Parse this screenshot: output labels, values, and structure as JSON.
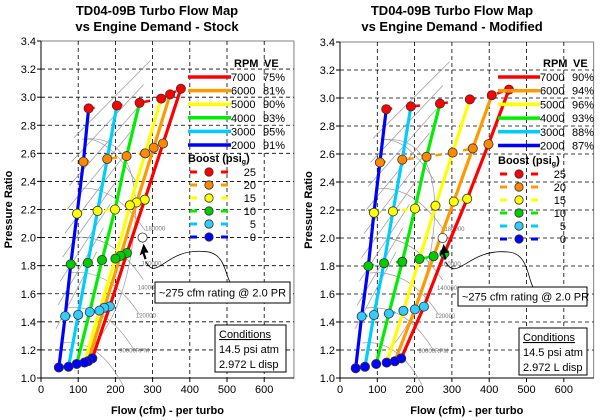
{
  "chart_data": [
    {
      "type": "line",
      "title": [
        "TD04-09B Turbo Flow Map",
        "vs Engine Demand - Stock"
      ],
      "xlabel": "Flow (cfm) - per turbo",
      "ylabel": "Pressure Ratio",
      "xlim": [
        0,
        680
      ],
      "ylim": [
        1.0,
        3.4
      ],
      "xticks": [
        0,
        100,
        200,
        300,
        400,
        500,
        600
      ],
      "yticks": [
        "1.0",
        "1.2",
        "1.4",
        "1.6",
        "1.8",
        "2.0",
        "2.2",
        "2.4",
        "2.6",
        "2.8",
        "3.0",
        "3.2",
        "3.4"
      ],
      "grid": true,
      "legend_placement": "top-right",
      "legend_rpm_header": [
        "RPM",
        "VE"
      ],
      "legend_boost_header": "Boost (psi",
      "legend_boost_sub": "g",
      "legend_boost_close": ")",
      "rpm_series": [
        {
          "rpm": "7000",
          "ve": "75%",
          "color": "#ff0000",
          "points": [
            [
              138,
              1.14
            ],
            [
              185,
              1.51
            ],
            [
              231,
              1.89
            ],
            [
              279,
              2.27
            ],
            [
              328,
              2.67
            ],
            [
              376,
              3.06
            ]
          ]
        },
        {
          "rpm": "6000",
          "ve": "81%",
          "color": "#ff9900",
          "points": [
            [
              127,
              1.12
            ],
            [
              170,
              1.5
            ],
            [
              214,
              1.87
            ],
            [
              257,
              2.25
            ],
            [
              303,
              2.64
            ],
            [
              347,
              3.02
            ]
          ]
        },
        {
          "rpm": "5000",
          "ve": "90%",
          "color": "#ffff00",
          "points": [
            [
              117,
              1.11
            ],
            [
              157,
              1.48
            ],
            [
              200,
              1.85
            ],
            [
              239,
              2.23
            ],
            [
              280,
              2.6
            ],
            [
              323,
              2.99
            ]
          ]
        },
        {
          "rpm": "4000",
          "ve": "93%",
          "color": "#00ee00",
          "points": [
            [
              96,
              1.1
            ],
            [
              131,
              1.47
            ],
            [
              164,
              1.84
            ],
            [
              199,
              2.2
            ],
            [
              230,
              2.58
            ],
            [
              265,
              2.96
            ]
          ]
        },
        {
          "rpm": "3000",
          "ve": "95%",
          "color": "#00ccff",
          "points": [
            [
              74,
              1.08
            ],
            [
              100,
              1.45
            ],
            [
              126,
              1.82
            ],
            [
              152,
              2.19
            ],
            [
              178,
              2.56
            ],
            [
              204,
              2.94
            ]
          ]
        },
        {
          "rpm": "2000",
          "ve": "91%",
          "color": "#0000ff",
          "points": [
            [
              48,
              1.075
            ],
            [
              65,
              1.44
            ],
            [
              80,
              1.81
            ],
            [
              97,
              2.17
            ],
            [
              114,
              2.54
            ],
            [
              128,
              2.92
            ]
          ]
        }
      ],
      "boost_levels": [
        {
          "psi": "25",
          "line_color": "#ff0000",
          "dot_color": "#ff0000"
        },
        {
          "psi": "20",
          "line_color": "#ff9900",
          "dot_color": "#ff8800"
        },
        {
          "psi": "15",
          "line_color": "#ffff00",
          "dot_color": "#ffff00"
        },
        {
          "psi": "10",
          "line_color": "#00ee00",
          "dot_color": "#00cc00"
        },
        {
          "psi": "5",
          "line_color": "#00ccff",
          "dot_color": "#33ccff"
        },
        {
          "psi": "0",
          "line_color": "#0000ff",
          "dot_color": "#0000ff"
        }
      ],
      "rating_point": [
        273,
        2.0
      ],
      "annotation": "~275 cfm rating @ 2.0 PR",
      "map_speed_labels": [
        "180000",
        "160000",
        "140000",
        "120000",
        "90000RPM"
      ],
      "conditions": {
        "title": "Conditions",
        "lines": [
          "14.5 psi atm",
          "2.972 L disp"
        ]
      }
    },
    {
      "type": "line",
      "title": [
        "TD04-09B Turbo Flow Map",
        "vs Engine Demand - Modified"
      ],
      "xlabel": "Flow (cfm) - per turbo",
      "ylabel": "Pressure Ratio",
      "xlim": [
        0,
        680
      ],
      "ylim": [
        1.0,
        3.4
      ],
      "xticks": [
        0,
        100,
        200,
        300,
        400,
        500,
        600
      ],
      "yticks": [
        "1.0",
        "1.2",
        "1.4",
        "1.6",
        "1.8",
        "2.0",
        "2.2",
        "2.4",
        "2.6",
        "2.8",
        "3.0",
        "3.2",
        "3.4"
      ],
      "grid": true,
      "legend_placement": "top-right",
      "legend_rpm_header": [
        "RPM",
        "VE"
      ],
      "legend_boost_header": "Boost (psi",
      "legend_boost_sub": "g",
      "legend_boost_close": ")",
      "rpm_series": [
        {
          "rpm": "7000",
          "ve": "90%",
          "color": "#ff0000",
          "points": [
            [
              164,
              1.14
            ],
            [
              225,
              1.51
            ],
            [
              280,
              1.89
            ],
            [
              341,
              2.28
            ],
            [
              398,
              2.67
            ],
            [
              453,
              3.06
            ]
          ]
        },
        {
          "rpm": "6000",
          "ve": "94%",
          "color": "#ff9900",
          "points": [
            [
              147,
              1.12
            ],
            [
              201,
              1.49
            ],
            [
              251,
              1.87
            ],
            [
              305,
              2.26
            ],
            [
              356,
              2.64
            ],
            [
              407,
              3.02
            ]
          ]
        },
        {
          "rpm": "5000",
          "ve": "96%",
          "color": "#ffff00",
          "points": [
            [
              125,
              1.11
            ],
            [
              170,
              1.48
            ],
            [
              213,
              1.85
            ],
            [
              256,
              2.23
            ],
            [
              302,
              2.61
            ],
            [
              348,
              2.99
            ]
          ]
        },
        {
          "rpm": "4000",
          "ve": "93%",
          "color": "#00ee00",
          "points": [
            [
              97,
              1.1
            ],
            [
              131,
              1.46
            ],
            [
              167,
              1.83
            ],
            [
              201,
              2.21
            ],
            [
              232,
              2.58
            ],
            [
              268,
              2.96
            ]
          ]
        },
        {
          "rpm": "3000",
          "ve": "88%",
          "color": "#00ccff",
          "points": [
            [
              67,
              1.08
            ],
            [
              91,
              1.45
            ],
            [
              118,
              1.82
            ],
            [
              142,
              2.19
            ],
            [
              167,
              2.56
            ],
            [
              190,
              2.94
            ]
          ]
        },
        {
          "rpm": "2000",
          "ve": "87%",
          "color": "#0000ff",
          "points": [
            [
              42,
              1.07
            ],
            [
              58,
              1.44
            ],
            [
              76,
              1.8
            ],
            [
              91,
              2.18
            ],
            [
              107,
              2.54
            ],
            [
              124,
              2.92
            ]
          ]
        }
      ],
      "boost_levels": [
        {
          "psi": "25",
          "line_color": "#ff0000",
          "dot_color": "#ff0000"
        },
        {
          "psi": "20",
          "line_color": "#ff9900",
          "dot_color": "#ff8800"
        },
        {
          "psi": "15",
          "line_color": "#ffff00",
          "dot_color": "#ffff00"
        },
        {
          "psi": "10",
          "line_color": "#00ee00",
          "dot_color": "#00cc00"
        },
        {
          "psi": "5",
          "line_color": "#00ccff",
          "dot_color": "#33ccff"
        },
        {
          "psi": "0",
          "line_color": "#0000ff",
          "dot_color": "#0000ff"
        }
      ],
      "rating_point": [
        275,
        2.0
      ],
      "annotation": "~275 cfm rating @ 2.0 PR",
      "map_speed_labels": [
        "180000",
        "160000",
        "140000",
        "120000",
        "90000RPM"
      ],
      "conditions": {
        "title": "Conditions",
        "lines": [
          "14.5 psi atm",
          "2.972 L disp"
        ]
      }
    }
  ]
}
